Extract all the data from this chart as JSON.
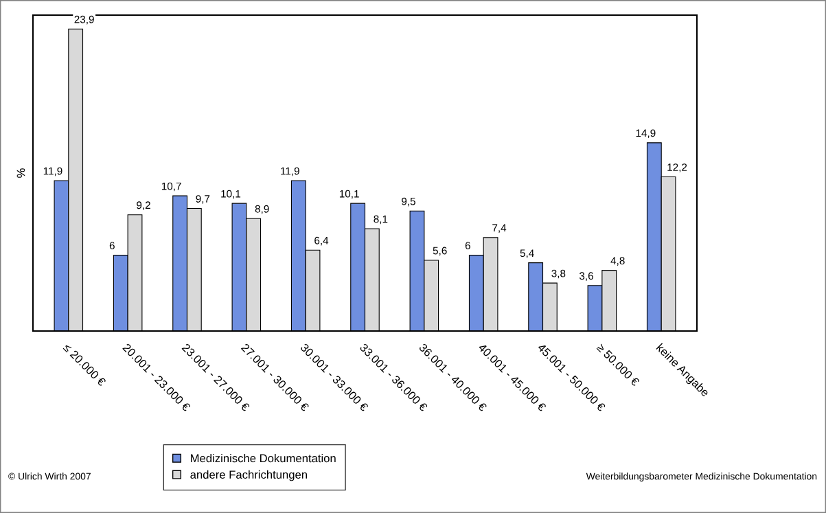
{
  "chart_data": {
    "type": "bar",
    "ylabel": "%",
    "categories": [
      "≤ 20.000 €",
      "20.001 - 23.000 €",
      "23.001 - 27.000 €",
      "27.001 - 30.000 €",
      "30.001 - 33.000 €",
      "33.001 - 36.000 €",
      "36.001 - 40.000 €",
      "40.001 - 45.000 €",
      "45.001 - 50.000 €",
      "≥ 50.000 €",
      "keine Angabe"
    ],
    "series": [
      {
        "name": "Medizinische Dokumentation",
        "color": "#6f8fe0",
        "values": [
          11.9,
          6,
          10.7,
          10.1,
          11.9,
          10.1,
          9.5,
          6,
          5.4,
          3.6,
          14.9
        ],
        "value_labels": [
          "11,9",
          "6",
          "10,7",
          "10,1",
          "11,9",
          "10,1",
          "9,5",
          "6",
          "5,4",
          "3,6",
          "14,9"
        ]
      },
      {
        "name": "andere Fachrichtungen",
        "color": "#d9d9d9",
        "values": [
          23.9,
          9.2,
          9.7,
          8.9,
          6.4,
          8.1,
          5.6,
          7.4,
          3.8,
          4.8,
          12.2
        ],
        "value_labels": [
          "23,9",
          "9,2",
          "9,7",
          "8,9",
          "6,4",
          "8,1",
          "5,6",
          "7,4",
          "3,8",
          "4,8",
          "12,2"
        ]
      }
    ],
    "ylim": [
      0,
      25
    ],
    "grid": false,
    "legend": "bottom left",
    "annotations": [
      "© Ulrich Wirth 2007",
      "Weiterbildungsbarometer Medizinische Dokumentation"
    ]
  }
}
